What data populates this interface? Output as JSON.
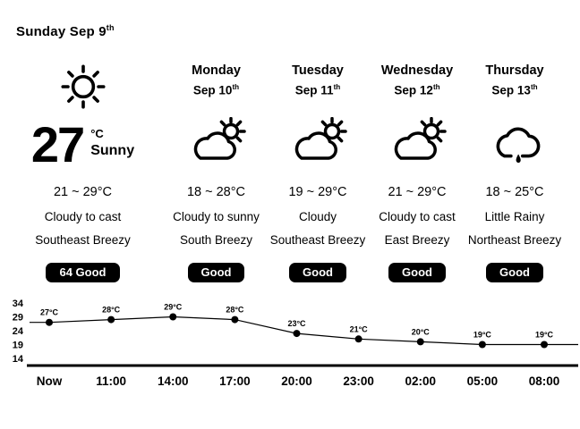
{
  "header": {
    "date_label": "Sunday Sep 9",
    "ordinal": "th"
  },
  "current": {
    "icon": "sun-icon",
    "temp": "27",
    "unit": "°C",
    "condition": "Sunny",
    "range": "21 ~ 29°C",
    "condition_line1": "Cloudy to cast",
    "condition_line2": "Southeast Breezy",
    "aqi_badge": "64  Good"
  },
  "forecast": [
    {
      "day": "Monday",
      "date": "Sep 10",
      "ordinal": "th",
      "icon": "cloud-sun-icon",
      "range": "18 ~ 28°C",
      "line1": "Cloudy to sunny",
      "line2": "South Breezy",
      "badge": "Good"
    },
    {
      "day": "Tuesday",
      "date": "Sep 11",
      "ordinal": "th",
      "icon": "cloud-sun-icon",
      "range": "19 ~ 29°C",
      "line1": "Cloudy",
      "line2": "Southeast Breezy",
      "badge": "Good"
    },
    {
      "day": "Wednesday",
      "date": "Sep 12",
      "ordinal": "th",
      "icon": "cloud-sun-icon",
      "range": "21 ~ 29°C",
      "line1": "Cloudy to cast",
      "line2": "East Breezy",
      "badge": "Good"
    },
    {
      "day": "Thursday",
      "date": "Sep 13",
      "ordinal": "th",
      "icon": "cloud-rain-icon",
      "range": "18 ~ 25°C",
      "line1": "Little Rainy",
      "line2": "Northeast Breezy",
      "badge": "Good"
    }
  ],
  "colors": {
    "foreground": "#000000",
    "background": "#ffffff",
    "badge_background": "#000000",
    "badge_text": "#ffffff"
  },
  "chart_data": {
    "type": "line",
    "title": "",
    "xlabel": "",
    "ylabel": "",
    "x": [
      "Now",
      "11:00",
      "14:00",
      "17:00",
      "20:00",
      "23:00",
      "02:00",
      "05:00",
      "08:00"
    ],
    "values": [
      27,
      28,
      29,
      28,
      23,
      21,
      20,
      19,
      19
    ],
    "point_labels": [
      "27°C",
      "28°C",
      "29°C",
      "28°C",
      "23°C",
      "21°C",
      "20°C",
      "19°C",
      "19°C"
    ],
    "y_ticks": [
      34,
      29,
      24,
      19,
      14
    ],
    "ylim": [
      14,
      34
    ],
    "grid": false,
    "legend": "none",
    "line_color": "#000000"
  }
}
